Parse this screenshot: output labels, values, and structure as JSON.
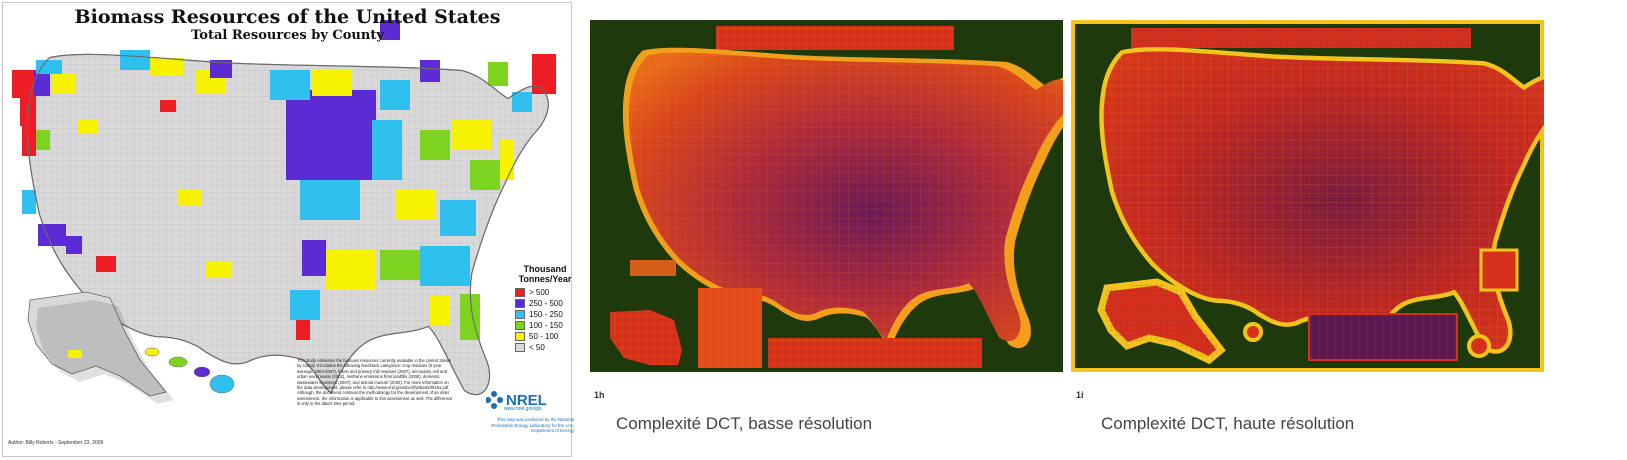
{
  "map": {
    "title": "Biomass Resources of the United States",
    "subtitle": "Total Resources by County",
    "legend": {
      "title_line1": "Thousand",
      "title_line2": "Tonnes/Year",
      "items": [
        {
          "label": "> 500",
          "color": "#ee1c24"
        },
        {
          "label": "250 - 500",
          "color": "#5b2cd6"
        },
        {
          "label": "150 - 250",
          "color": "#2fc0f0"
        },
        {
          "label": "100 - 150",
          "color": "#7ed321"
        },
        {
          "label": "50 - 100",
          "color": "#f6f200"
        },
        {
          "label": "< 50",
          "color": "#d9d9d9"
        }
      ]
    },
    "note": "This study estimates the biomass resources currently available in the United States by county. It includes the following feedstock categories: crop residues (5 year average: 2003-2007), forest and primary mill residues (2007), secondary mill and urban wood waste (2002), methane emissions from landfills (2008), domestic wastewater treatment (2007), and animal manure (2002). For more information on the data development, please refer to http://www.nrel.gov/docs/fy06osti/39181.pdf. Although, the document contains the methodology for the development of an older assessment, the information is applicable to this assessment as well. The difference is only in the data's time period.",
    "author": "Author: Billy Roberts - September 23, 2009",
    "logo_text": "NREL",
    "url": "www.nrel.gov/gis",
    "credit": "This map was produced by the National Renewable Energy Laboratory for the U.S. Department of Energy"
  },
  "panels": [
    {
      "tag": "1h",
      "caption": "Complexité DCT, basse résolution"
    },
    {
      "tag": "1i",
      "caption": "Complexité DCT, haute résolution"
    }
  ],
  "colors": {
    "heat_background": "#1e3a0c",
    "heat_low": "#f6c21c",
    "heat_mid": "#d8361a",
    "heat_high": "#5a1750",
    "county_gray": "#d9d9d9"
  }
}
